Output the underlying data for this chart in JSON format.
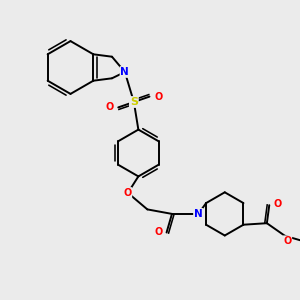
{
  "background_color": "#ebebeb",
  "figsize": [
    3.0,
    3.0
  ],
  "dpi": 100,
  "line_color": "#000000",
  "line_width": 1.4,
  "N_color": "#0000ff",
  "O_color": "#ff0000",
  "S_color": "#cccc00",
  "font_size": 7.0,
  "xlim": [
    0,
    10
  ],
  "ylim": [
    0,
    10
  ]
}
